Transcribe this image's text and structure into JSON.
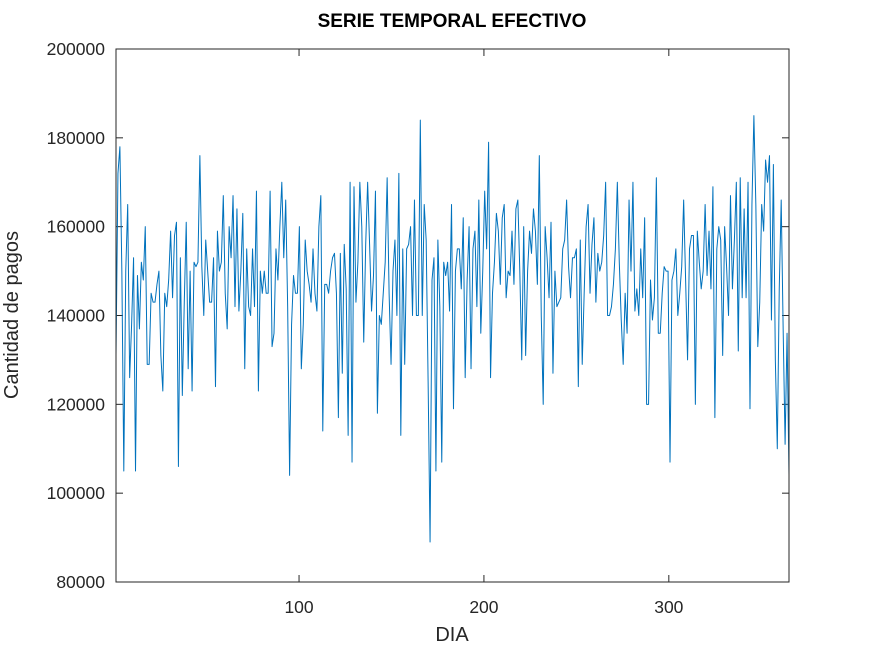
{
  "chart_data": {
    "type": "line",
    "title": "SERIE TEMPORAL EFECTIVO",
    "xlabel": "DIA",
    "ylabel": "Cantidad de pagos",
    "xlim": [
      1,
      365
    ],
    "ylim": [
      80000,
      200000
    ],
    "xticks": [
      100,
      200,
      300
    ],
    "yticks": [
      80000,
      100000,
      120000,
      140000,
      160000,
      180000,
      200000
    ],
    "xtick_labels": [
      "100",
      "200",
      "300"
    ],
    "ytick_labels": [
      "80000",
      "100000",
      "120000",
      "140000",
      "160000",
      "180000",
      "200000"
    ],
    "grid": false,
    "line_color": "#0072BD",
    "series": [
      {
        "values": [
          131000,
          172000,
          178000,
          150000,
          105000,
          150000,
          165000,
          126000,
          138000,
          153000,
          105000,
          149000,
          137000,
          152000,
          148000,
          160000,
          129000,
          129000,
          145000,
          143000,
          143000,
          147000,
          150000,
          131000,
          123000,
          145000,
          142000,
          148000,
          159000,
          144000,
          158000,
          161000,
          106000,
          153000,
          122000,
          143000,
          161000,
          128000,
          150000,
          123000,
          152000,
          151000,
          152000,
          176000,
          151000,
          140000,
          157000,
          150000,
          143000,
          143000,
          153000,
          124000,
          159000,
          150000,
          152000,
          167000,
          145000,
          137000,
          160000,
          153000,
          167000,
          142000,
          164000,
          141000,
          150000,
          163000,
          128000,
          155000,
          142000,
          140000,
          155000,
          142000,
          168000,
          123000,
          150000,
          145000,
          150000,
          145000,
          145000,
          168000,
          133000,
          136000,
          155000,
          148000,
          160000,
          170000,
          153000,
          166000,
          142000,
          104000,
          138000,
          149000,
          145000,
          145000,
          160000,
          128000,
          138000,
          157000,
          150000,
          147000,
          143000,
          155000,
          145000,
          141000,
          160000,
          167000,
          114000,
          147000,
          147000,
          145000,
          150000,
          153000,
          154000,
          145000,
          117000,
          154000,
          127000,
          156000,
          146000,
          113000,
          170000,
          107000,
          169000,
          143000,
          152000,
          170000,
          160000,
          134000,
          156000,
          170000,
          156000,
          141000,
          149000,
          168000,
          118000,
          140000,
          138000,
          145000,
          152000,
          171000,
          145000,
          129000,
          150000,
          157000,
          140000,
          172000,
          113000,
          155000,
          129000,
          155000,
          156000,
          160000,
          140000,
          166000,
          140000,
          140000,
          184000,
          140000,
          165000,
          157000,
          125000,
          89000,
          148000,
          153000,
          105000,
          157000,
          142000,
          107000,
          152000,
          149000,
          152000,
          141000,
          165000,
          119000,
          150000,
          155000,
          155000,
          146000,
          162000,
          126000,
          148000,
          160000,
          128000,
          155000,
          159000,
          142000,
          166000,
          136000,
          150000,
          168000,
          155000,
          179000,
          126000,
          145000,
          152000,
          163000,
          159000,
          147000,
          162000,
          165000,
          144000,
          150000,
          149000,
          159000,
          147000,
          164000,
          166000,
          150000,
          130000,
          160000,
          131000,
          150000,
          159000,
          154000,
          164000,
          159000,
          147000,
          176000,
          140000,
          120000,
          160000,
          153000,
          144000,
          161000,
          127000,
          150000,
          142000,
          143000,
          144000,
          155000,
          157000,
          166000,
          151000,
          144000,
          153000,
          153000,
          155000,
          124000,
          157000,
          129000,
          145000,
          160000,
          165000,
          145000,
          156000,
          162000,
          143000,
          154000,
          150000,
          152000,
          158000,
          170000,
          140000,
          140000,
          142000,
          147000,
          155000,
          170000,
          152000,
          139000,
          129000,
          145000,
          136000,
          166000,
          150000,
          170000,
          141000,
          146000,
          140000,
          155000,
          144000,
          162000,
          120000,
          120000,
          148000,
          139000,
          144000,
          171000,
          136000,
          136000,
          145000,
          151000,
          150000,
          150000,
          107000,
          148000,
          150000,
          155000,
          140000,
          145000,
          151000,
          166000,
          148000,
          130000,
          155000,
          158000,
          158000,
          120000,
          159000,
          152000,
          146000,
          150000,
          165000,
          149000,
          159000,
          146000,
          169000,
          117000,
          155000,
          160000,
          157000,
          131000,
          160000,
          151000,
          140000,
          167000,
          146000,
          157000,
          170000,
          132000,
          171000,
          144000,
          164000,
          144000,
          170000,
          119000,
          165000,
          185000,
          165000,
          133000,
          143000,
          165000,
          159000,
          175000,
          170000,
          176000,
          139000,
          174000,
          130000,
          110000,
          146000,
          166000,
          137000,
          111000,
          136000,
          104000
        ]
      }
    ]
  }
}
